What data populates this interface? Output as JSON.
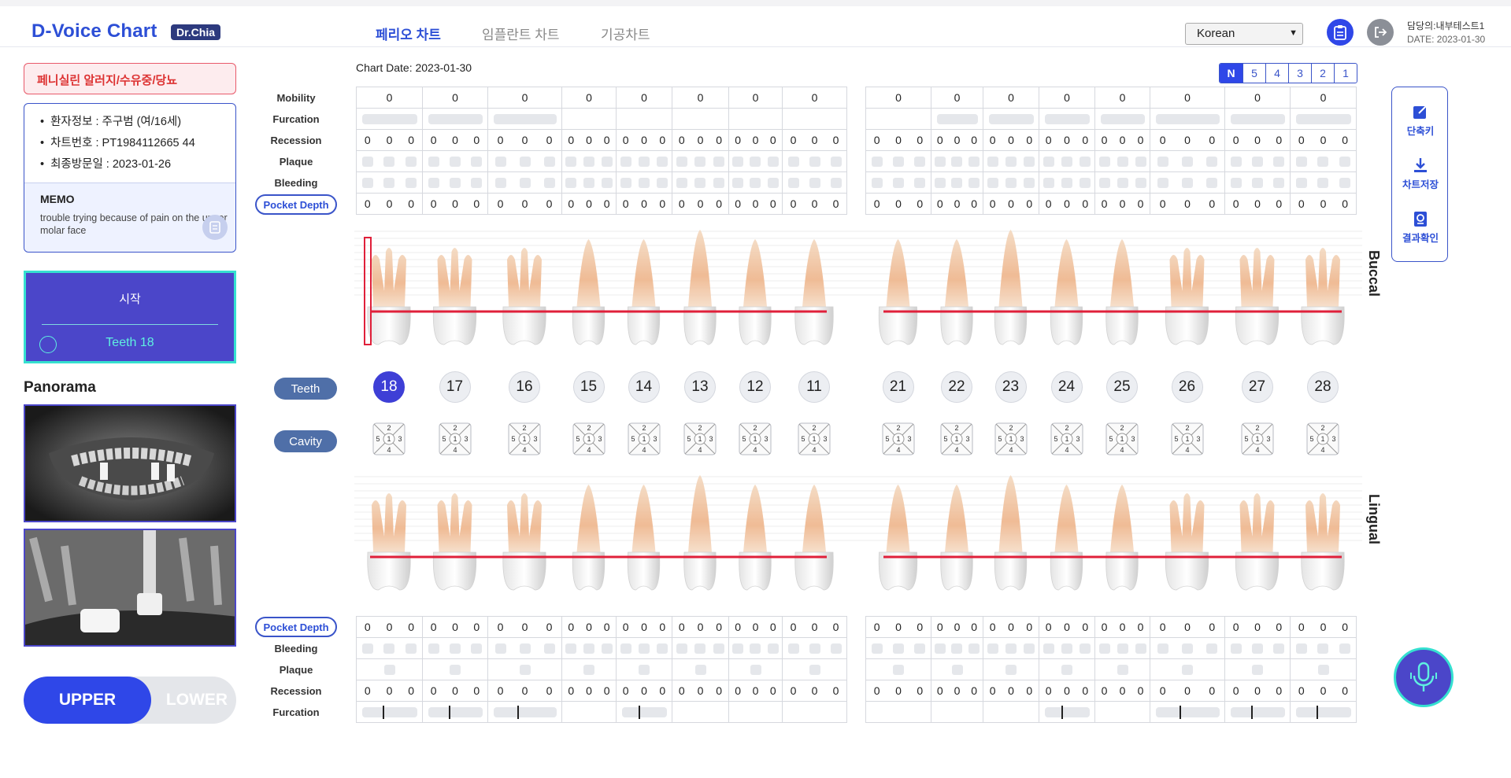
{
  "app": {
    "title": "D-Voice Chart",
    "badge": "Dr.Chia"
  },
  "nav": {
    "tabs": [
      {
        "label": "페리오 차트",
        "active": true
      },
      {
        "label": "임플란트 차트",
        "active": false
      },
      {
        "label": "기공차트",
        "active": false
      }
    ]
  },
  "header": {
    "language": "Korean",
    "doctor": "담당의:내부테스트1",
    "date": "DATE: 2023-01-30"
  },
  "patient": {
    "alert": "페니실린 알러지/수유중/당뇨",
    "info": [
      "환자정보 : 주구범 (여/16세)",
      "차트번호 : PT1984112665 44",
      "최종방문일 : 2023-01-26"
    ],
    "memo_title": "MEMO",
    "memo_text": "trouble trying because of pain on the upper molar face"
  },
  "start_panel": {
    "start_label": "시작",
    "teeth_label": "Teeth 18"
  },
  "panorama": {
    "title": "Panorama"
  },
  "arch_toggle": {
    "upper": "UPPER",
    "lower": "LOWER",
    "selected": "UPPER"
  },
  "chart": {
    "date_label": "Chart Date: 2023-01-30",
    "n_options": [
      "N",
      "5",
      "4",
      "3",
      "2",
      "1"
    ],
    "selected_n": "N",
    "top_rows": [
      "Mobility",
      "Furcation",
      "Recession",
      "Plaque",
      "Bleeding",
      "Pocket Depth"
    ],
    "bottom_rows": [
      "Pocket Depth",
      "Bleeding",
      "Plaque",
      "Recession",
      "Furcation"
    ],
    "teeth_label": "Teeth",
    "cavity_label": "Cavity",
    "buccal_label": "Buccal",
    "lingual_label": "Lingual",
    "teeth": [
      "18",
      "17",
      "16",
      "15",
      "14",
      "13",
      "12",
      "11",
      "21",
      "22",
      "23",
      "24",
      "25",
      "26",
      "27",
      "28"
    ],
    "selected_tooth": "18",
    "mobility": [
      0,
      0,
      0,
      0,
      0,
      0,
      0,
      0,
      0,
      0,
      0,
      0,
      0,
      0,
      0,
      0
    ],
    "recession_value": 0,
    "pocket_value": 0,
    "cavity_surfaces": [
      "2",
      "5",
      "1",
      "3",
      "4"
    ]
  },
  "side_tools": [
    {
      "label": "단축키",
      "icon": "share-icon"
    },
    {
      "label": "차트저장",
      "icon": "download-icon"
    },
    {
      "label": "결과확인",
      "icon": "result-icon"
    }
  ],
  "colors": {
    "primary": "#2f47e8",
    "accent": "#35e0d0",
    "alert": "#d33333",
    "gum_line": "#e0203a"
  }
}
